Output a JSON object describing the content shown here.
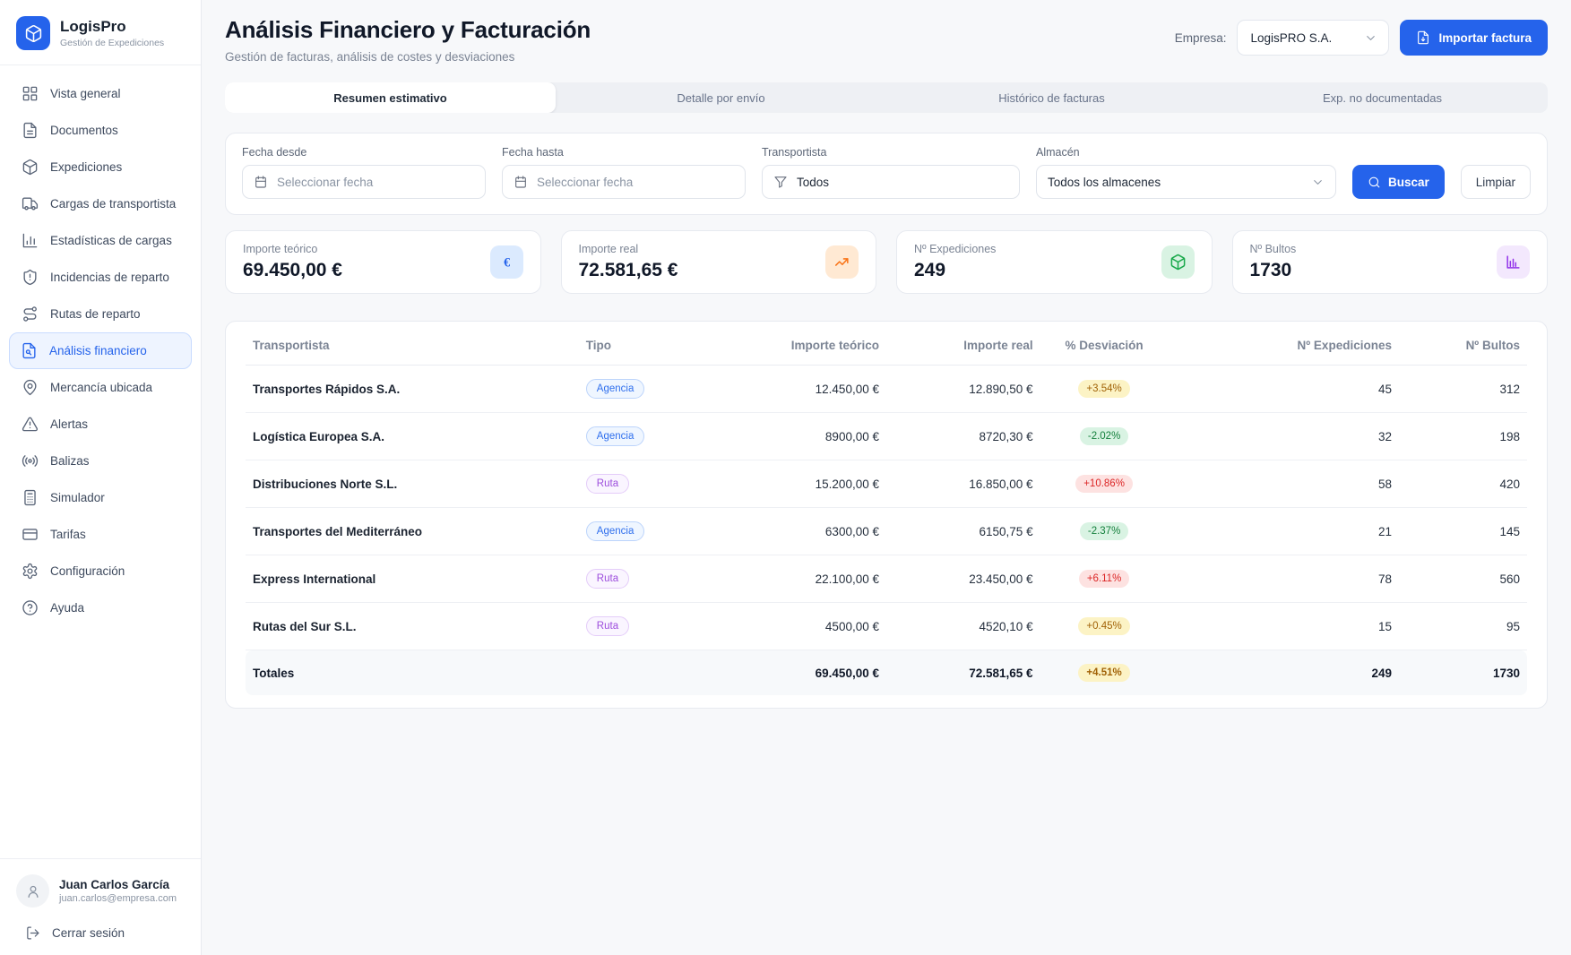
{
  "theme": {
    "accent": "#2563eb",
    "deviation_colors": {
      "yellow": {
        "bg": "#fcf3c5",
        "text": "#a16207"
      },
      "green": {
        "bg": "#d9f3e3",
        "text": "#15803d"
      },
      "red": {
        "bg": "#fde2e1",
        "text": "#dc2626"
      }
    },
    "tipo_colors": {
      "Agencia": {
        "bg": "#eff6ff",
        "border": "#bcd4fb",
        "text": "#2f6fed"
      },
      "Ruta": {
        "bg": "#faf5ff",
        "border": "#e4ccf9",
        "text": "#9d4edd"
      }
    }
  },
  "brand": {
    "name": "LogisPro",
    "subtitle": "Gestión de Expediciones",
    "logo_icon": "cube-icon"
  },
  "sidebar": {
    "items": [
      {
        "label": "Vista general",
        "icon": "grid-icon",
        "active": false
      },
      {
        "label": "Documentos",
        "icon": "document-icon",
        "active": false
      },
      {
        "label": "Expediciones",
        "icon": "package-icon",
        "active": false
      },
      {
        "label": "Cargas de transportista",
        "icon": "truck-icon",
        "active": false
      },
      {
        "label": "Estadísticas de cargas",
        "icon": "chart-icon",
        "active": false
      },
      {
        "label": "Incidencias de reparto",
        "icon": "shield-alert-icon",
        "active": false
      },
      {
        "label": "Rutas de reparto",
        "icon": "route-icon",
        "active": false
      },
      {
        "label": "Análisis financiero",
        "icon": "file-search-icon",
        "active": true
      },
      {
        "label": "Mercancía ubicada",
        "icon": "map-pin-icon",
        "active": false
      },
      {
        "label": "Alertas",
        "icon": "alert-triangle-icon",
        "active": false
      },
      {
        "label": "Balizas",
        "icon": "broadcast-icon",
        "active": false
      },
      {
        "label": "Simulador",
        "icon": "calculator-icon",
        "active": false
      },
      {
        "label": "Tarifas",
        "icon": "credit-card-icon",
        "active": false
      },
      {
        "label": "Configuración",
        "icon": "gear-icon",
        "active": false
      },
      {
        "label": "Ayuda",
        "icon": "help-icon",
        "active": false
      }
    ]
  },
  "user": {
    "name": "Juan Carlos García",
    "email": "juan.carlos@empresa.com",
    "avatar_icon": "user-icon",
    "logout_label": "Cerrar sesión",
    "logout_icon": "logout-icon"
  },
  "header": {
    "title": "Análisis Financiero y Facturación",
    "subtitle": "Gestión de facturas, análisis de costes y desviaciones",
    "company_label": "Empresa:",
    "company_value": "LogisPRO S.A.",
    "import_button_label": "Importar factura",
    "import_button_icon": "file-import-icon"
  },
  "tabs": [
    {
      "label": "Resumen estimativo",
      "active": true
    },
    {
      "label": "Detalle por envío",
      "active": false
    },
    {
      "label": "Histórico de facturas",
      "active": false
    },
    {
      "label": "Exp. no documentadas",
      "active": false
    }
  ],
  "filters": {
    "fecha_desde": {
      "label": "Fecha desde",
      "placeholder": "Seleccionar fecha",
      "icon": "calendar-icon"
    },
    "fecha_hasta": {
      "label": "Fecha hasta",
      "placeholder": "Seleccionar fecha",
      "icon": "calendar-icon"
    },
    "transportista": {
      "label": "Transportista",
      "value": "Todos",
      "icon": "filter-icon"
    },
    "almacen": {
      "label": "Almacén",
      "value": "Todos los almacenes",
      "icon": "chevron-down-icon"
    },
    "buscar_label": "Buscar",
    "buscar_icon": "search-icon",
    "limpiar_label": "Limpiar"
  },
  "stats": [
    {
      "label": "Importe teórico",
      "value": "69.450,00 €",
      "icon": "euro-icon",
      "icon_color": "#2563eb",
      "icon_bg": "#dbeafe"
    },
    {
      "label": "Importe real",
      "value": "72.581,65 €",
      "icon": "trend-up-icon",
      "icon_color": "#f97316",
      "icon_bg": "#ffe9d3"
    },
    {
      "label": "Nº Expediciones",
      "value": "249",
      "icon": "package-icon",
      "icon_color": "#1ba94c",
      "icon_bg": "#d9f3e3"
    },
    {
      "label": "Nº Bultos",
      "value": "1730",
      "icon": "bar-chart-icon",
      "icon_color": "#9333ea",
      "icon_bg": "#f3e8fd"
    }
  ],
  "table": {
    "columns": [
      "Transportista",
      "Tipo",
      "Importe teórico",
      "Importe real",
      "% Desviación",
      "Nº Expediciones",
      "Nº Bultos"
    ],
    "rows": [
      {
        "transportista": "Transportes Rápidos S.A.",
        "tipo": "Agencia",
        "importe_teorico": "12.450,00 €",
        "importe_real": "12.890,50 €",
        "desviacion": "+3.54%",
        "desviacion_tone": "yellow",
        "expediciones": "45",
        "bultos": "312"
      },
      {
        "transportista": "Logística Europea S.A.",
        "tipo": "Agencia",
        "importe_teorico": "8900,00 €",
        "importe_real": "8720,30 €",
        "desviacion": "-2.02%",
        "desviacion_tone": "green",
        "expediciones": "32",
        "bultos": "198"
      },
      {
        "transportista": "Distribuciones Norte S.L.",
        "tipo": "Ruta",
        "importe_teorico": "15.200,00 €",
        "importe_real": "16.850,00 €",
        "desviacion": "+10.86%",
        "desviacion_tone": "red",
        "expediciones": "58",
        "bultos": "420"
      },
      {
        "transportista": "Transportes del Mediterráneo",
        "tipo": "Agencia",
        "importe_teorico": "6300,00 €",
        "importe_real": "6150,75 €",
        "desviacion": "-2.37%",
        "desviacion_tone": "green",
        "expediciones": "21",
        "bultos": "145"
      },
      {
        "transportista": "Express International",
        "tipo": "Ruta",
        "importe_teorico": "22.100,00 €",
        "importe_real": "23.450,00 €",
        "desviacion": "+6.11%",
        "desviacion_tone": "red",
        "expediciones": "78",
        "bultos": "560"
      },
      {
        "transportista": "Rutas del Sur S.L.",
        "tipo": "Ruta",
        "importe_teorico": "4500,00 €",
        "importe_real": "4520,10 €",
        "desviacion": "+0.45%",
        "desviacion_tone": "yellow",
        "expediciones": "15",
        "bultos": "95"
      }
    ],
    "totals": {
      "label": "Totales",
      "importe_teorico": "69.450,00 €",
      "importe_real": "72.581,65 €",
      "desviacion": "+4.51%",
      "desviacion_tone": "yellow",
      "expediciones": "249",
      "bultos": "1730"
    }
  }
}
